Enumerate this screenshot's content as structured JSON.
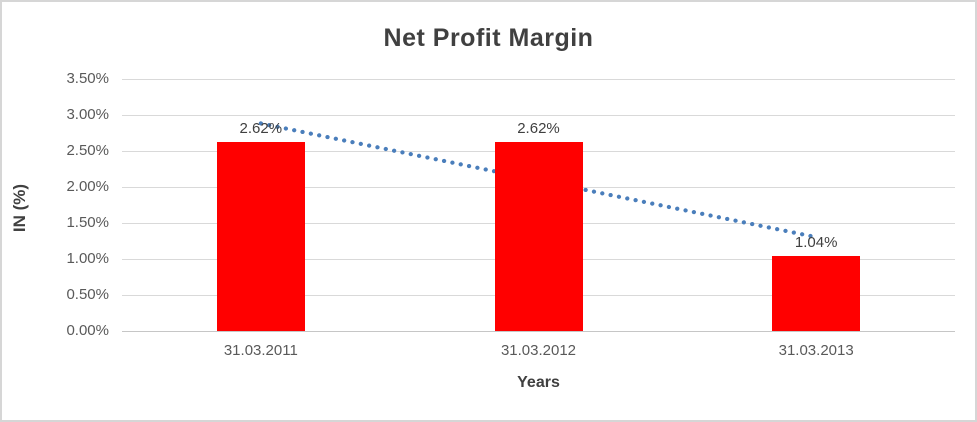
{
  "chart": {
    "title": "Net Profit Margin",
    "x_axis_title": "Years",
    "y_axis_title": "IN (%)",
    "colors": {
      "bar": "#ff0000",
      "trendline": "#4a7ebb",
      "gridline": "#d9d9d9",
      "axis_line": "#c6c6c6",
      "title_text": "#404040",
      "tick_text": "#595959",
      "frame_border": "#d6d6d6"
    }
  },
  "chart_data": {
    "type": "bar",
    "title": "Net Profit Margin",
    "xlabel": "Years",
    "ylabel": "IN (%)",
    "categories": [
      "31.03.2011",
      "31.03.2012",
      "31.03.2013"
    ],
    "series": [
      {
        "name": "Net Profit Margin",
        "values": [
          2.62,
          2.62,
          1.04
        ]
      }
    ],
    "data_labels": [
      "2.62%",
      "2.62%",
      "1.04%"
    ],
    "y_ticks": [
      "3.50%",
      "3.00%",
      "2.50%",
      "2.00%",
      "1.50%",
      "1.00%",
      "0.50%",
      "0.00%"
    ],
    "y_tick_values": [
      3.5,
      3.0,
      2.5,
      2.0,
      1.5,
      1.0,
      0.5,
      0.0
    ],
    "ylim": [
      0,
      3.5
    ],
    "grid": true,
    "legend": false,
    "trendline": {
      "type": "linear",
      "style": "dotted"
    }
  }
}
